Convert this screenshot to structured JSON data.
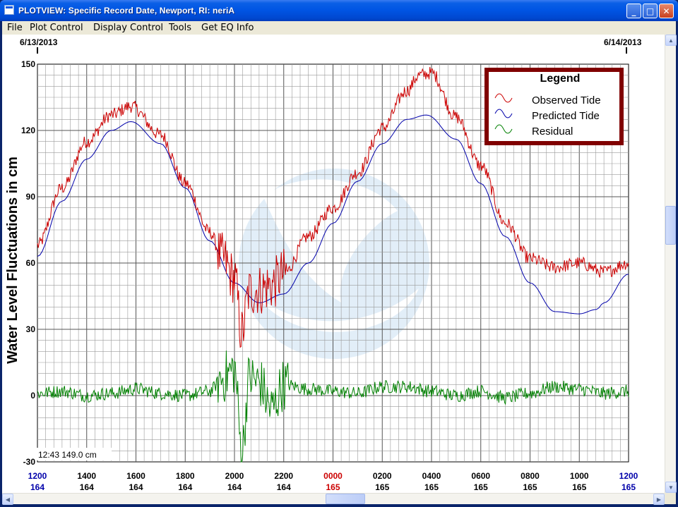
{
  "window": {
    "title": "PLOTVIEW: Specific Record Date, Newport, RI: neriA",
    "minimize_icon": "minimize-icon",
    "maximize_icon": "maximize-icon",
    "close_icon": "close-icon"
  },
  "menu": [
    "File",
    "Plot Control",
    "Display Control",
    "Tools",
    "Get EQ Info"
  ],
  "dates": {
    "left": "6/13/2013",
    "right": "6/14/2013"
  },
  "readout": "12:43  149.0 cm",
  "colors": {
    "observed": "#cc0000",
    "predicted": "#0000aa",
    "residual": "#008000",
    "legend_border": "#800000",
    "hour_blue": "#0000aa",
    "hour_red": "#cc0000"
  },
  "chart_data": {
    "type": "line",
    "ylabel": "Water Level Fluctuations in cm",
    "ylim": [
      -30,
      150
    ],
    "yticks": [
      150,
      120,
      90,
      60,
      30,
      0,
      -30
    ],
    "xlim_hours": [
      0,
      24
    ],
    "grid": true,
    "legend_placement": "top-right",
    "legend": {
      "title": "Legend",
      "entries": [
        "Observed Tide",
        "Predicted Tide",
        "Residual"
      ]
    },
    "x_tick_labels": [
      {
        "time": "1200",
        "day": "164",
        "color": "blue"
      },
      {
        "time": "1400",
        "day": "164",
        "color": "black"
      },
      {
        "time": "1600",
        "day": "164",
        "color": "black"
      },
      {
        "time": "1800",
        "day": "164",
        "color": "black"
      },
      {
        "time": "2000",
        "day": "164",
        "color": "black"
      },
      {
        "time": "2200",
        "day": "164",
        "color": "black"
      },
      {
        "time": "0000",
        "day": "165",
        "color": "red"
      },
      {
        "time": "0200",
        "day": "165",
        "color": "black"
      },
      {
        "time": "0400",
        "day": "165",
        "color": "black"
      },
      {
        "time": "0600",
        "day": "165",
        "color": "black"
      },
      {
        "time": "0800",
        "day": "165",
        "color": "black"
      },
      {
        "time": "1000",
        "day": "165",
        "color": "black"
      },
      {
        "time": "1200",
        "day": "165",
        "color": "blue"
      }
    ],
    "series": [
      {
        "name": "Predicted Tide",
        "hours": [
          0,
          1,
          2,
          3,
          3.8,
          5,
          6,
          7,
          8,
          9,
          10,
          11,
          12,
          13,
          14,
          15,
          15.8,
          17,
          18,
          19,
          20,
          21,
          22,
          22.7,
          23,
          24
        ],
        "values": [
          63,
          88,
          107,
          120,
          124,
          114,
          94,
          70,
          51,
          42,
          46,
          60,
          78,
          97,
          114,
          125,
          127,
          116,
          96,
          72,
          51,
          38,
          37,
          39,
          42,
          55
        ]
      },
      {
        "name": "Observed Tide",
        "hours": [
          0,
          1,
          2,
          3,
          3.8,
          5,
          6,
          7,
          7.5,
          8,
          8.3,
          8.6,
          9,
          9.5,
          10,
          11,
          12,
          13,
          14,
          15,
          15.5,
          16,
          17,
          18,
          19,
          20,
          21,
          22,
          23,
          24
        ],
        "values": [
          68,
          94,
          115,
          127,
          131,
          118,
          96,
          74,
          62,
          53,
          28,
          47,
          48,
          50,
          55,
          72,
          85,
          101,
          121,
          138,
          145,
          146,
          126,
          104,
          78,
          62,
          58,
          60,
          56,
          60
        ]
      },
      {
        "name": "Residual",
        "hours": [
          0,
          1,
          2,
          3,
          4,
          5,
          6,
          7,
          7.5,
          8,
          8.3,
          8.6,
          9,
          9.5,
          10,
          11,
          12,
          13,
          14,
          15,
          16,
          17,
          18,
          19,
          20,
          21,
          22,
          23,
          24
        ],
        "values": [
          1,
          2,
          0,
          1,
          3,
          1,
          0,
          2,
          8,
          12,
          -25,
          8,
          6,
          -6,
          5,
          3,
          2,
          1,
          4,
          4,
          2,
          0,
          2,
          -1,
          1,
          4,
          3,
          1,
          2
        ]
      }
    ]
  }
}
